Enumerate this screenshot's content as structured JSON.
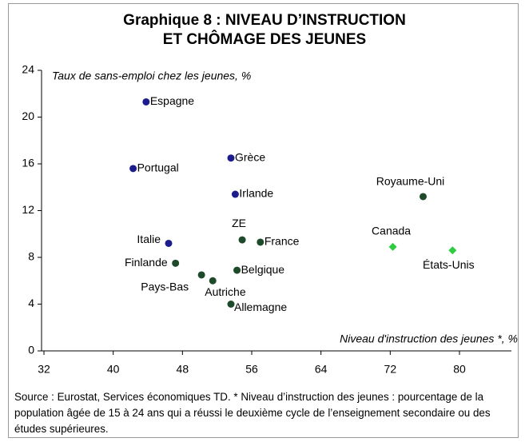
{
  "chart_data": {
    "type": "scatter",
    "title": "Graphique 8 : NIVEAU D’INSTRUCTION\nET CHÔMAGE DES JEUNES",
    "ylabel": "Taux de sans-emploi chez les jeunes, %",
    "xlabel": "Niveau d'instruction des jeunes *, %",
    "source": "Source : Eurostat, Services économiques TD. * Niveau d’instruction des jeunes : pourcentage de la population âgée de 15 à 24 ans qui a réussi le deuxième cycle de l’enseignement secondaire ou des études supérieures.",
    "xlim": [
      32,
      86
    ],
    "xticks": [
      32,
      40,
      48,
      56,
      64,
      72,
      80
    ],
    "ylim": [
      0,
      24
    ],
    "yticks": [
      0,
      4,
      8,
      12,
      16,
      20,
      24
    ],
    "series": [
      {
        "color": "#1c1c8c",
        "marker": "circle",
        "labels": [
          "Espagne",
          "Portugal",
          "Grèce",
          "Irlande",
          "Italie"
        ],
        "x": [
          43.8,
          42.3,
          53.6,
          54.1,
          46.4
        ],
        "values": [
          21.3,
          15.6,
          16.5,
          13.4,
          9.2
        ]
      },
      {
        "color": "#1e4a2a",
        "marker": "circle",
        "labels": [
          "ZE",
          "France",
          "Finlande",
          "Belgique",
          "Pays-Bas",
          "Autriche",
          "Allemagne",
          "Royaume-Uni"
        ],
        "x": [
          54.9,
          57.0,
          47.2,
          54.3,
          50.2,
          51.5,
          53.6,
          75.8
        ],
        "values": [
          9.5,
          9.3,
          7.5,
          6.9,
          6.5,
          6.0,
          4.0,
          13.2
        ]
      },
      {
        "color": "#2ecc40",
        "marker": "diamond",
        "labels": [
          "Canada",
          "États-Unis"
        ],
        "x": [
          72.3,
          79.2
        ],
        "values": [
          8.9,
          8.6
        ]
      }
    ]
  }
}
